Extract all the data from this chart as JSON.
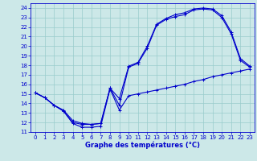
{
  "xlabel": "Graphe des températures (°C)",
  "background_color": "#cce8e8",
  "grid_color": "#99cccc",
  "line_color": "#0000cc",
  "xlim": [
    -0.5,
    23.5
  ],
  "ylim": [
    11,
    24.5
  ],
  "xticks": [
    0,
    1,
    2,
    3,
    4,
    5,
    6,
    7,
    8,
    9,
    10,
    11,
    12,
    13,
    14,
    15,
    16,
    17,
    18,
    19,
    20,
    21,
    22,
    23
  ],
  "yticks": [
    11,
    12,
    13,
    14,
    15,
    16,
    17,
    18,
    19,
    20,
    21,
    22,
    23,
    24
  ],
  "line_min_x": [
    0,
    1,
    2,
    3,
    4,
    5,
    6,
    7,
    8,
    9,
    10,
    11,
    12,
    13,
    14,
    15,
    16,
    17,
    18,
    19,
    20,
    21,
    22,
    23
  ],
  "line_min_y": [
    15.1,
    14.6,
    13.8,
    13.2,
    11.9,
    11.5,
    11.5,
    11.6,
    15.5,
    13.3,
    14.8,
    15.0,
    15.2,
    15.4,
    15.6,
    15.8,
    16.0,
    16.3,
    16.5,
    16.8,
    17.0,
    17.2,
    17.4,
    17.6
  ],
  "line_mean_x": [
    0,
    1,
    2,
    3,
    4,
    5,
    6,
    7,
    8,
    9,
    10,
    11,
    12,
    13,
    14,
    15,
    16,
    17,
    18,
    19,
    20,
    21,
    22,
    23
  ],
  "line_mean_y": [
    15.1,
    14.6,
    13.8,
    13.2,
    12.0,
    11.8,
    11.8,
    11.9,
    15.6,
    13.8,
    17.8,
    18.2,
    19.8,
    22.2,
    22.8,
    23.1,
    23.3,
    23.8,
    23.9,
    23.8,
    23.0,
    21.3,
    18.5,
    17.8
  ],
  "line_max_x": [
    0,
    1,
    2,
    3,
    4,
    5,
    6,
    7,
    8,
    9,
    10,
    11,
    12,
    13,
    14,
    15,
    16,
    17,
    18,
    19,
    20,
    21,
    22,
    23
  ],
  "line_max_y": [
    15.1,
    14.6,
    13.8,
    13.3,
    12.2,
    11.9,
    11.8,
    11.9,
    15.6,
    14.5,
    17.9,
    18.3,
    20.0,
    22.3,
    22.9,
    23.3,
    23.5,
    23.9,
    24.0,
    23.9,
    23.2,
    21.5,
    18.7,
    17.9
  ],
  "tick_fontsize": 5,
  "xlabel_fontsize": 6
}
